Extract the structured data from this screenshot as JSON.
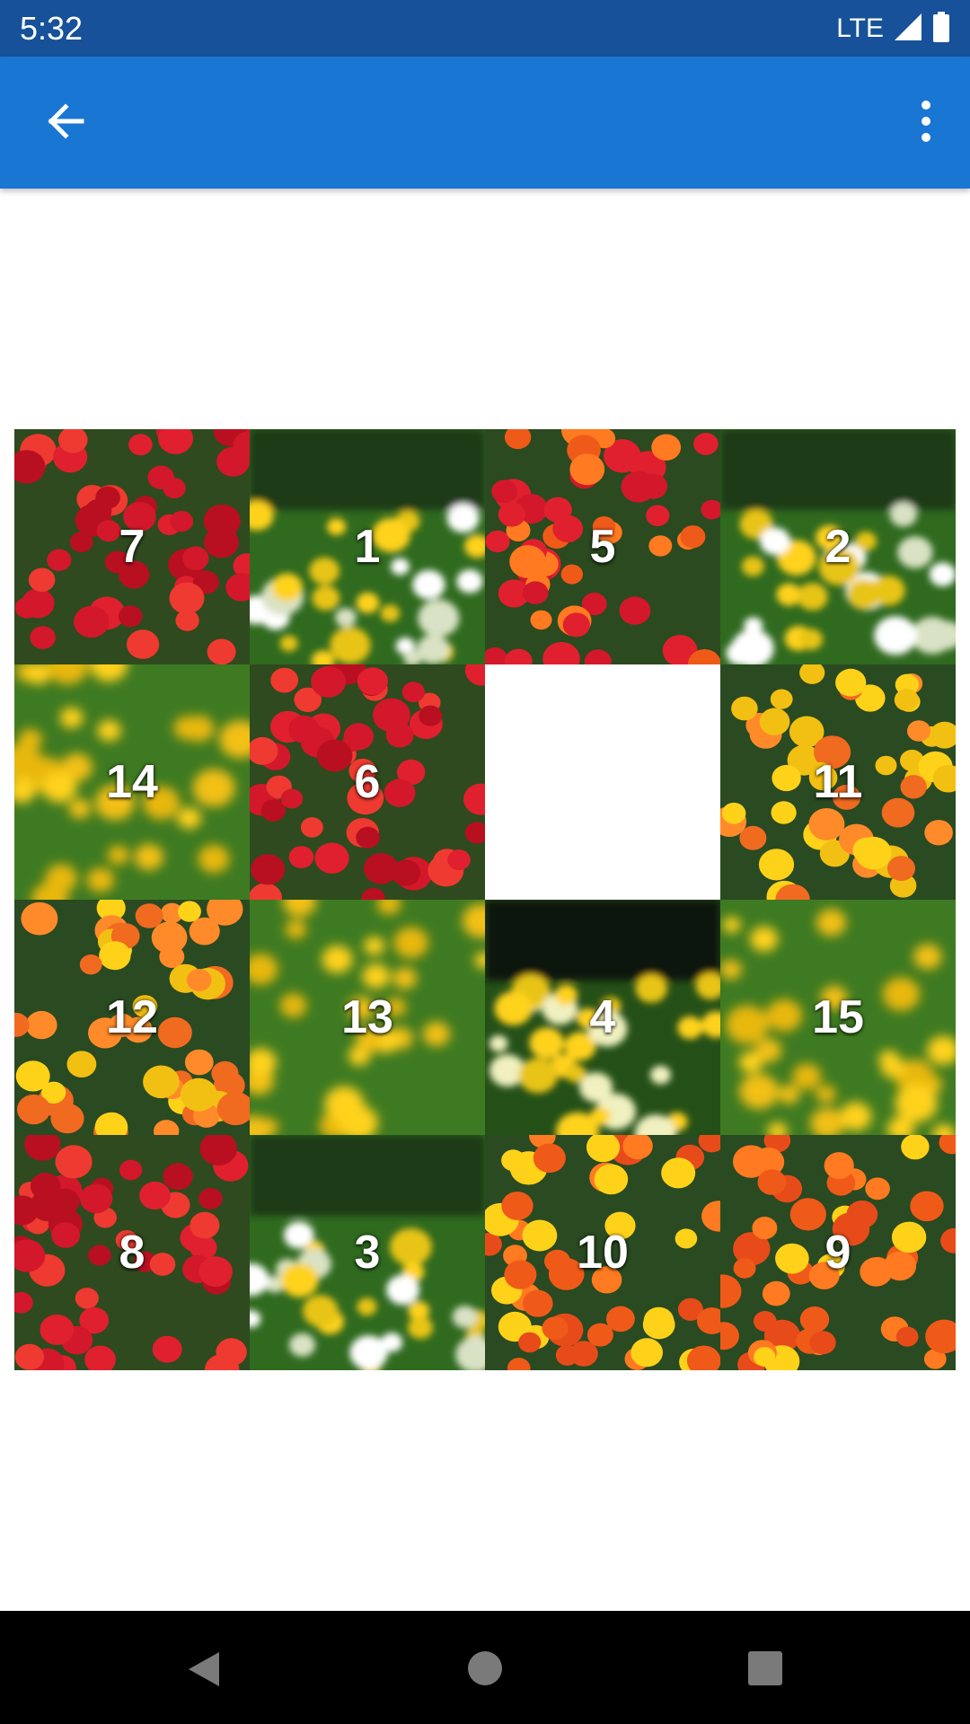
{
  "status_bar": {
    "time": "5:32",
    "network": "LTE"
  },
  "app_bar": {
    "back_icon": "arrow-back-icon",
    "menu_icon": "more-vert-icon"
  },
  "puzzle": {
    "tiles": [
      {
        "label": "7",
        "theme": "red"
      },
      {
        "label": "1",
        "theme": "meadow"
      },
      {
        "label": "5",
        "theme": "red-orange"
      },
      {
        "label": "2",
        "theme": "meadow"
      },
      {
        "label": "14",
        "theme": "yellow-blur"
      },
      {
        "label": "6",
        "theme": "red"
      },
      {
        "label": "",
        "theme": "empty"
      },
      {
        "label": "11",
        "theme": "orange-yellow"
      },
      {
        "label": "12",
        "theme": "orange-yellow"
      },
      {
        "label": "13",
        "theme": "yellow-blur"
      },
      {
        "label": "4",
        "theme": "dark-meadow"
      },
      {
        "label": "15",
        "theme": "yellow-blur"
      },
      {
        "label": "8",
        "theme": "red"
      },
      {
        "label": "3",
        "theme": "meadow"
      },
      {
        "label": "10",
        "theme": "orange"
      },
      {
        "label": "9",
        "theme": "orange"
      }
    ]
  },
  "nav_bar": {
    "back_icon": "nav-back-icon",
    "home_icon": "nav-home-icon",
    "recents_icon": "nav-recents-icon"
  },
  "colors": {
    "status_bar": "#16519a",
    "app_bar": "#1976d2",
    "nav_bar": "#000000"
  }
}
